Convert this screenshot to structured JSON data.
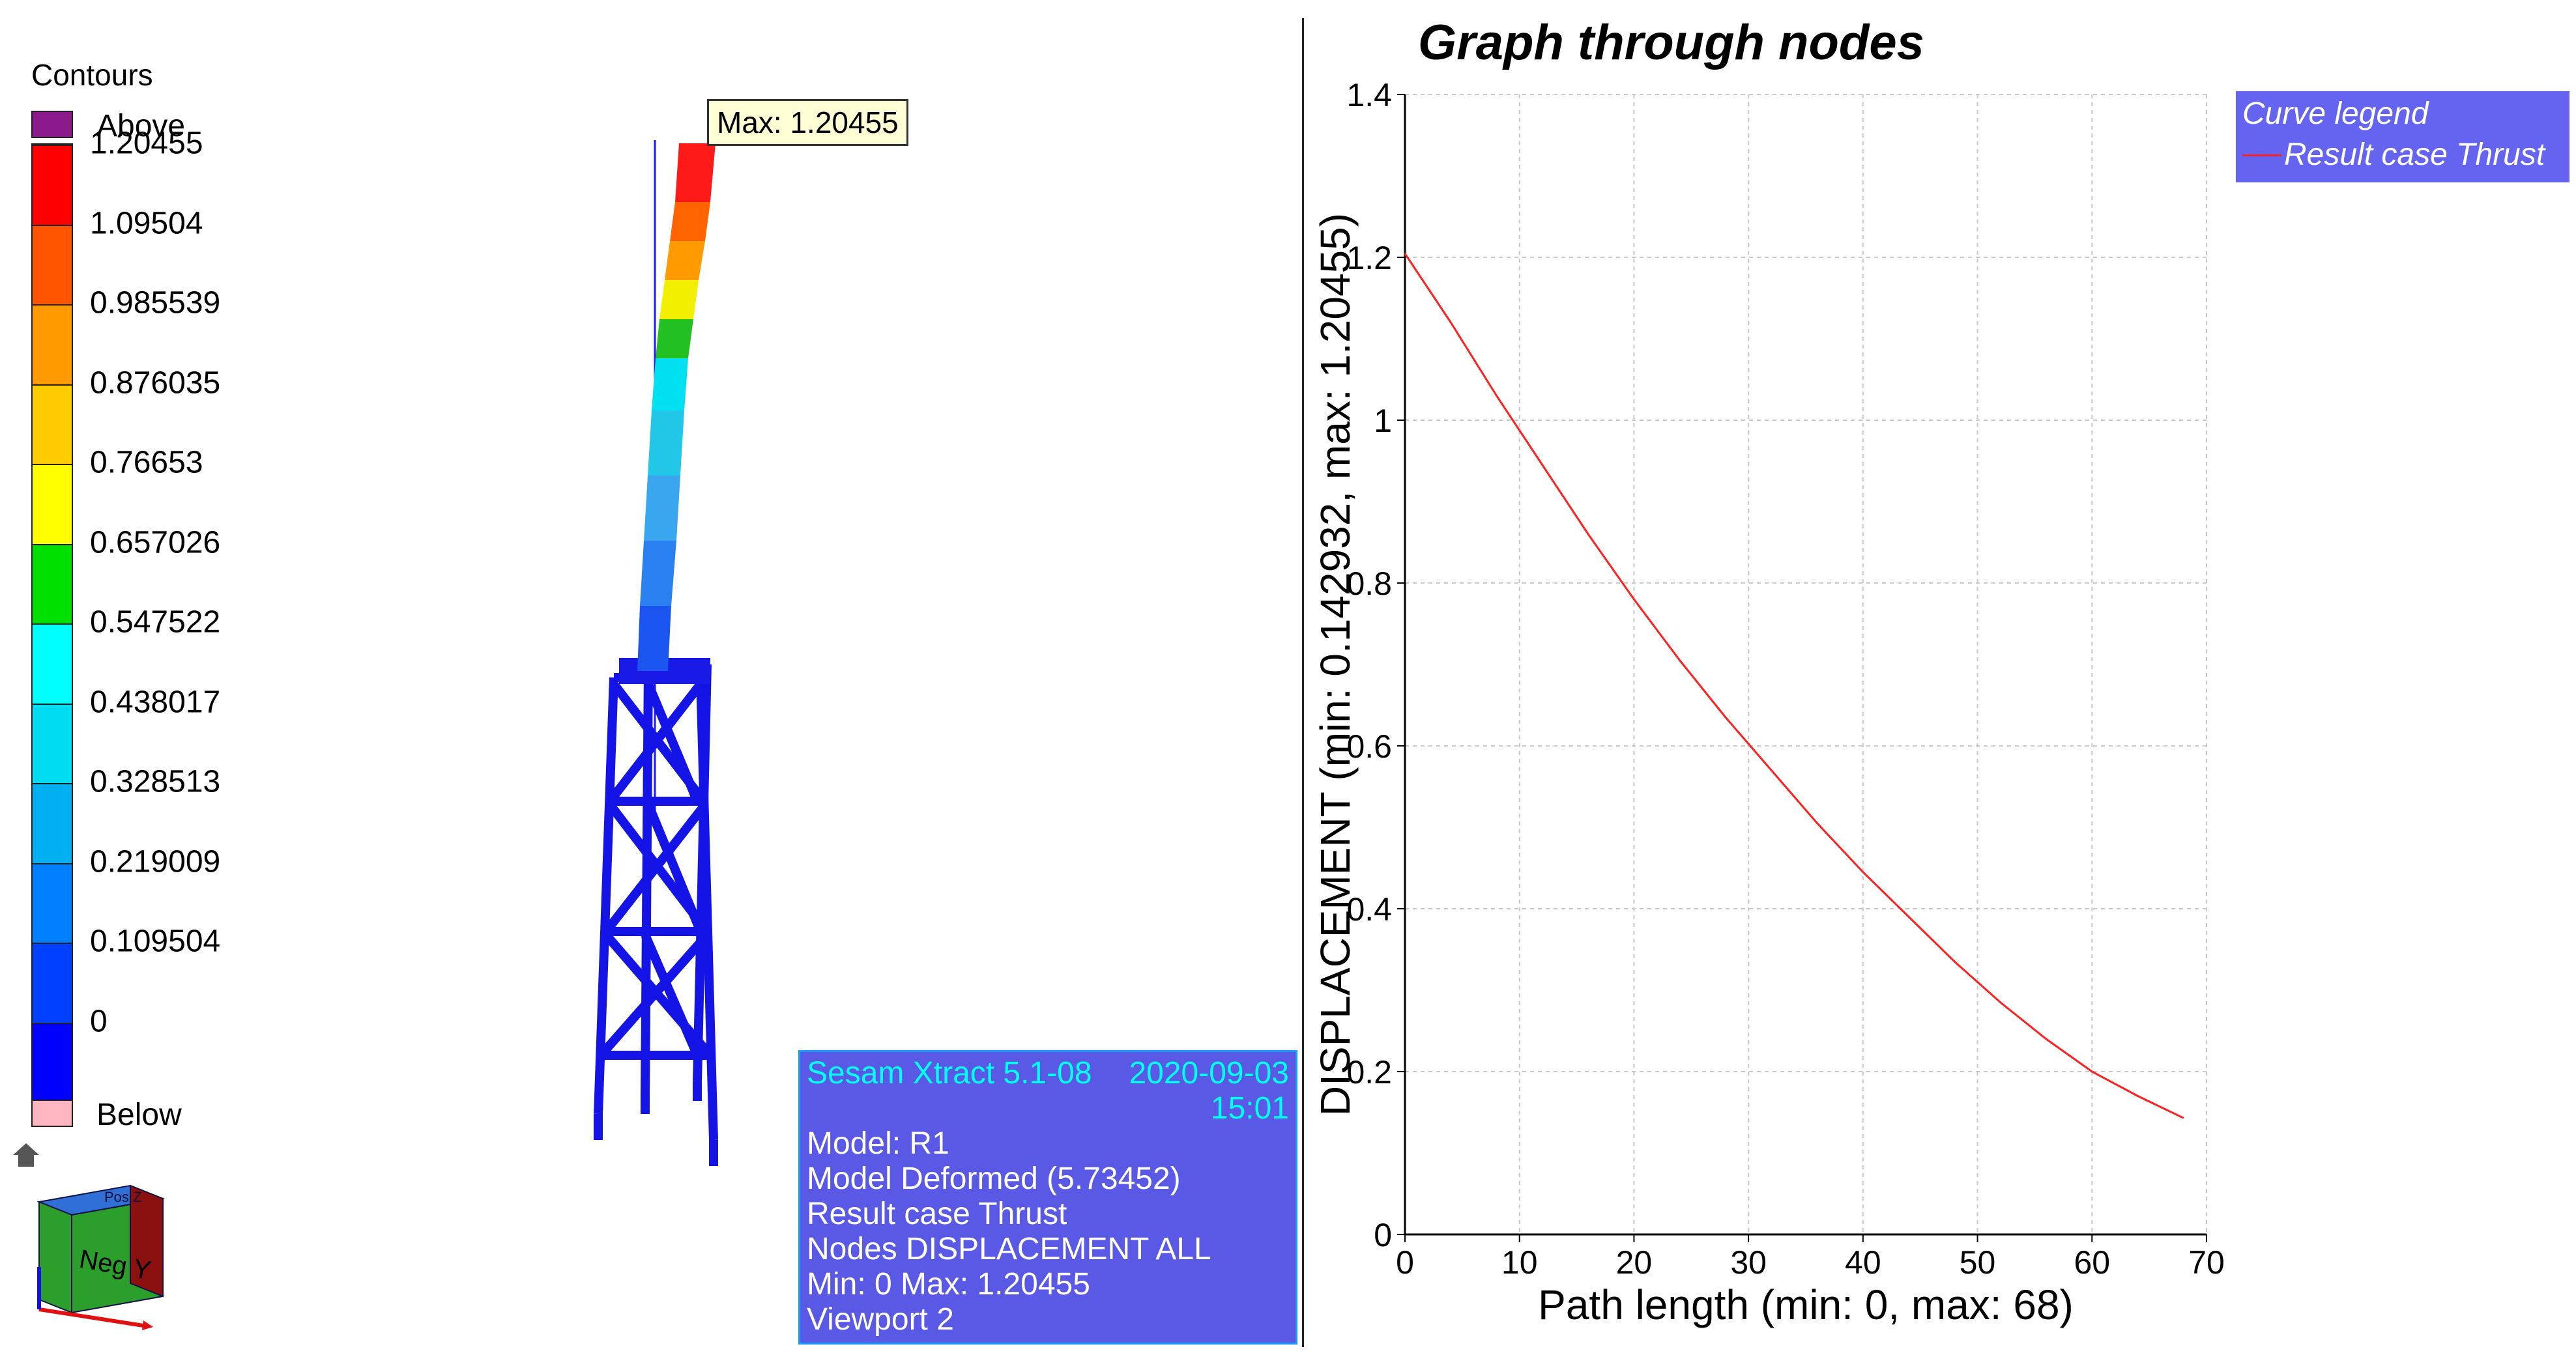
{
  "contours": {
    "title": "Contours",
    "above_label": "Above",
    "below_label": "Below",
    "above_color": "#8b1a8b",
    "below_color": "#ffb6c1",
    "levels": [
      "1.20455",
      "1.09504",
      "0.985539",
      "0.876035",
      "0.76653",
      "0.657026",
      "0.547522",
      "0.438017",
      "0.328513",
      "0.219009",
      "0.109504",
      "0"
    ],
    "band_colors": [
      "#ff0000",
      "#ff5500",
      "#ff9a00",
      "#ffcc00",
      "#ffff00",
      "#00e000",
      "#00ffff",
      "#00dcf0",
      "#00b0f0",
      "#0080ff",
      "#0040ff",
      "#0000ff"
    ]
  },
  "model": {
    "max_tooltip": "Max: 1.20455"
  },
  "info": {
    "app": "Sesam Xtract 5.1-08",
    "date": "2020-09-03",
    "time": "15:01",
    "lines": [
      "Model: R1",
      "Model Deformed (5.73452)",
      "Result case Thrust",
      "Nodes DISPLACEMENT ALL",
      "Min: 0 Max: 1.20455",
      "Viewport 2"
    ]
  },
  "view_cube": {
    "front_label": "Neg Y",
    "top_label": "Pos Z"
  },
  "graph": {
    "title": "Graph through nodes",
    "legend_title": "Curve legend",
    "legend_entry": "Result case Thrust"
  },
  "chart_data": {
    "type": "line",
    "title": "Graph through nodes",
    "xlabel": "Path length (min: 0, max: 68)",
    "ylabel": "DISPLACEMENT (min: 0.142932, max: 1.20455)",
    "xlim": [
      0,
      70
    ],
    "ylim": [
      0,
      1.4
    ],
    "xticks": [
      0,
      10,
      20,
      30,
      40,
      50,
      60,
      70
    ],
    "yticks": [
      0,
      0.2,
      0.4,
      0.6,
      0.8,
      1,
      1.2,
      1.4
    ],
    "ytick_labels": [
      "0",
      "0.2",
      "0.4",
      "0.6",
      "0.8",
      "1",
      "1.2",
      "1.4"
    ],
    "grid": true,
    "legend_position": "top-right",
    "series": [
      {
        "name": "Result case Thrust",
        "color": "#ff2020",
        "x": [
          0,
          4,
          8,
          12,
          16,
          20,
          24,
          28,
          32,
          36,
          40,
          44,
          48,
          52,
          56,
          60,
          64,
          68
        ],
        "y": [
          1.20455,
          1.12,
          1.03,
          0.945,
          0.86,
          0.78,
          0.705,
          0.635,
          0.57,
          0.505,
          0.445,
          0.39,
          0.335,
          0.285,
          0.24,
          0.2,
          0.17,
          0.142932
        ]
      }
    ]
  }
}
